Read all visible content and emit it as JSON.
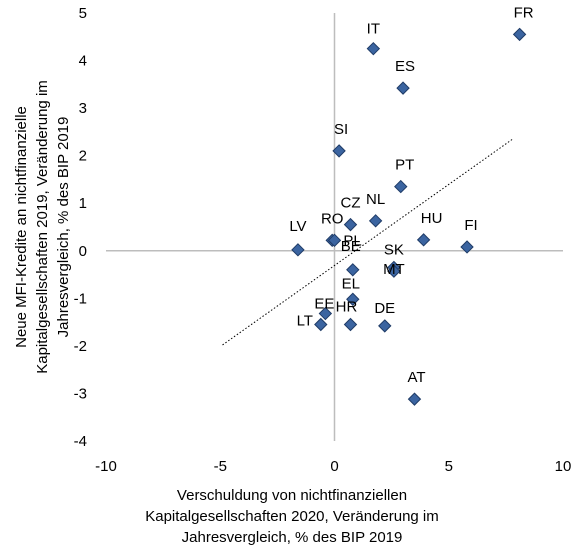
{
  "chart_data": {
    "type": "scatter",
    "xlabel": [
      "Verschuldung von nichtfinanziellen",
      "Kapitalgesellschaften 2020, Veränderung im",
      "Jahresvergleich, % des BIP 2019"
    ],
    "ylabel": [
      "Neue MFI-Kredite an nichtfinanzielle",
      "Kapitalgesellschaften 2019, Veränderung im",
      "Jahresvergleich, % des BIP 2019"
    ],
    "xlim": [
      -10,
      10
    ],
    "ylim": [
      -4,
      5
    ],
    "xticks": [
      -10,
      -5,
      0,
      5,
      10
    ],
    "yticks": [
      -4,
      -3,
      -2,
      -1,
      0,
      1,
      2,
      3,
      4,
      5
    ],
    "xtick_labels": [
      "-10",
      "-5",
      "0",
      "5",
      "10"
    ],
    "ytick_labels": [
      "-4",
      "-3",
      "-2",
      "-1",
      "0",
      "1",
      "2",
      "3",
      "4",
      "5"
    ],
    "marker_color": "#3b64a0",
    "marker_edge_color": "#1f3b66",
    "trendline": {
      "style": "dotted",
      "color": "#000000",
      "x": [
        -4.9,
        7.8
      ],
      "y": [
        -1.98,
        2.35
      ]
    },
    "points": [
      {
        "label": "FR",
        "x": 8.1,
        "y": 4.55
      },
      {
        "label": "IT",
        "x": 1.7,
        "y": 4.25
      },
      {
        "label": "ES",
        "x": 3.0,
        "y": 3.42
      },
      {
        "label": "SI",
        "x": 0.2,
        "y": 2.1
      },
      {
        "label": "PT",
        "x": 2.9,
        "y": 1.35
      },
      {
        "label": "NL",
        "x": 1.8,
        "y": 0.63
      },
      {
        "label": "CZ",
        "x": 0.7,
        "y": 0.55
      },
      {
        "label": "HU",
        "x": 3.9,
        "y": 0.23
      },
      {
        "label": "FI",
        "x": 5.8,
        "y": 0.08
      },
      {
        "label": "LV",
        "x": -1.6,
        "y": 0.02
      },
      {
        "label": "RO",
        "x": -0.1,
        "y": 0.22
      },
      {
        "label": "PL",
        "x": 0.0,
        "y": 0.22
      },
      {
        "label": "SK",
        "x": 2.6,
        "y": -0.35
      },
      {
        "label": "MT",
        "x": 2.6,
        "y": -0.43
      },
      {
        "label": "BE",
        "x": 0.8,
        "y": -0.4
      },
      {
        "label": "EL",
        "x": 0.8,
        "y": -1.02
      },
      {
        "label": "HR",
        "x": 0.7,
        "y": -1.55
      },
      {
        "label": "EE",
        "x": -0.4,
        "y": -1.32
      },
      {
        "label": "LT",
        "x": -0.6,
        "y": -1.55
      },
      {
        "label": "DE",
        "x": 2.2,
        "y": -1.58
      },
      {
        "label": "AT",
        "x": 3.5,
        "y": -3.12
      }
    ]
  }
}
